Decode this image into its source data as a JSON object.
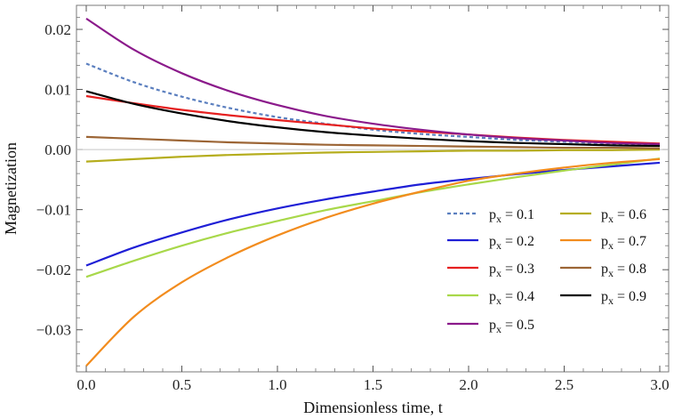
{
  "chart_data": {
    "type": "line",
    "title": "",
    "xlabel": "Dimensionless time, t",
    "ylabel": "Magnetization",
    "xlim": [
      0,
      3
    ],
    "ylim": [
      -0.037,
      0.024
    ],
    "x_ticks": [
      0.0,
      0.5,
      1.0,
      1.5,
      2.0,
      2.5,
      3.0
    ],
    "x_tick_labels": [
      "0.0",
      "0.5",
      "1.0",
      "1.5",
      "2.0",
      "2.5",
      "3.0"
    ],
    "y_ticks": [
      0.02,
      0.01,
      0.0,
      -0.01,
      -0.02,
      -0.03
    ],
    "y_tick_labels": [
      "0.02",
      "0.01",
      "0.00",
      "−0.01",
      "−0.02",
      "−0.03"
    ],
    "grid": false,
    "legend_position": "bottom-right",
    "x": [
      0.0,
      0.25,
      0.5,
      0.75,
      1.0,
      1.25,
      1.5,
      1.75,
      2.0,
      2.25,
      2.5,
      2.75,
      3.0
    ],
    "series": [
      {
        "name": "p",
        "sub": "x",
        "value": "0.1",
        "color": "#5b7fbf",
        "dashed": true,
        "values": [
          0.0143,
          0.0112,
          0.0088,
          0.0069,
          0.0054,
          0.0043,
          0.0033,
          0.0026,
          0.0021,
          0.0016,
          0.0013,
          0.001,
          0.0008
        ]
      },
      {
        "name": "p",
        "sub": "x",
        "value": "0.2",
        "color": "#1f1fd6",
        "dashed": false,
        "values": [
          -0.0193,
          -0.0163,
          -0.0138,
          -0.0116,
          -0.0098,
          -0.0083,
          -0.007,
          -0.0058,
          -0.0049,
          -0.0041,
          -0.0034,
          -0.0028,
          -0.0022
        ]
      },
      {
        "name": "p",
        "sub": "x",
        "value": "0.3",
        "color": "#e62020",
        "dashed": false,
        "values": [
          0.0089,
          0.0077,
          0.0066,
          0.0057,
          0.0049,
          0.0042,
          0.0035,
          0.003,
          0.0025,
          0.002,
          0.0016,
          0.0013,
          0.001
        ]
      },
      {
        "name": "p",
        "sub": "x",
        "value": "0.4",
        "color": "#a8d84a",
        "dashed": false,
        "values": [
          -0.0212,
          -0.0185,
          -0.016,
          -0.0138,
          -0.0119,
          -0.0101,
          -0.0086,
          -0.0071,
          -0.0058,
          -0.0046,
          -0.0035,
          -0.0025,
          -0.0015
        ]
      },
      {
        "name": "p",
        "sub": "x",
        "value": "0.5",
        "color": "#8b1a8b",
        "dashed": false,
        "values": [
          0.0218,
          0.0166,
          0.0127,
          0.0097,
          0.0074,
          0.0056,
          0.0043,
          0.0033,
          0.0025,
          0.0019,
          0.0015,
          0.0011,
          0.0009
        ]
      },
      {
        "name": "p",
        "sub": "x",
        "value": "0.6",
        "color": "#b5ad1d",
        "dashed": false,
        "values": [
          -0.002,
          -0.0016,
          -0.0012,
          -0.0009,
          -0.0007,
          -0.0005,
          -0.0004,
          -0.0003,
          -0.0002,
          -0.0002,
          -0.0001,
          -0.0001,
          0.0
        ]
      },
      {
        "name": "p",
        "sub": "x",
        "value": "0.7",
        "color": "#f28c1e",
        "dashed": false,
        "values": [
          -0.036,
          -0.0278,
          -0.0221,
          -0.0178,
          -0.0143,
          -0.0114,
          -0.009,
          -0.007,
          -0.0052,
          -0.004,
          -0.003,
          -0.0022,
          -0.0016
        ]
      },
      {
        "name": "p",
        "sub": "x",
        "value": "0.8",
        "color": "#9c6535",
        "dashed": false,
        "values": [
          0.0021,
          0.0018,
          0.0015,
          0.0012,
          0.001,
          0.0008,
          0.0007,
          0.0006,
          0.0005,
          0.0004,
          0.0003,
          0.0003,
          0.0002
        ]
      },
      {
        "name": "p",
        "sub": "x",
        "value": "0.9",
        "color": "#000000",
        "dashed": false,
        "values": [
          0.0097,
          0.0076,
          0.006,
          0.0047,
          0.0037,
          0.0029,
          0.0023,
          0.0018,
          0.0014,
          0.0011,
          0.0009,
          0.0007,
          0.0006
        ]
      }
    ]
  }
}
